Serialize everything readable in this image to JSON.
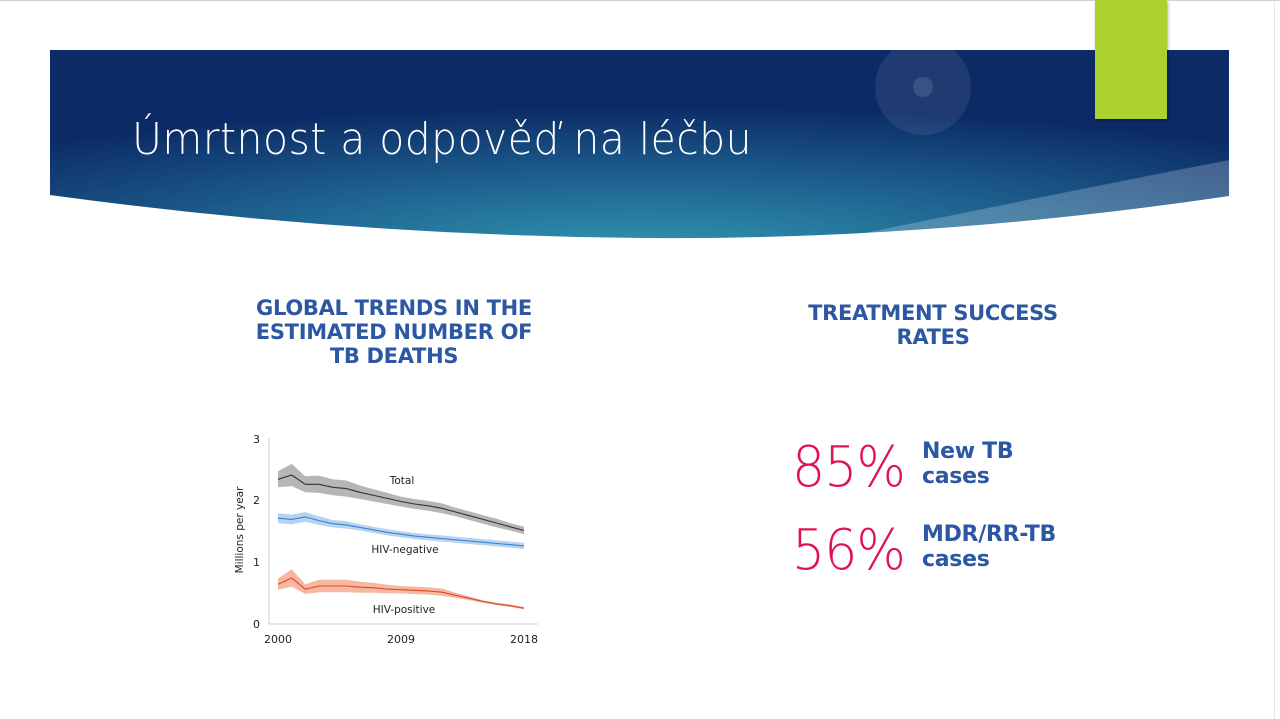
{
  "slide": {
    "title": "Úmrtnost a odpověď na léčbu",
    "colors": {
      "banner_dark": "#0e2f6b",
      "banner_light": "#2e8fad",
      "accent_green": "#aad12f",
      "heading_blue": "#2c58a3",
      "stat_red": "#e0134f"
    }
  },
  "left_panel": {
    "heading_lines": [
      "GLOBAL TRENDS IN THE",
      "ESTIMATED NUMBER OF",
      "TB DEATHS"
    ]
  },
  "right_panel": {
    "heading_lines": [
      "TREATMENT SUCCESS",
      "RATES"
    ],
    "stats": [
      {
        "value": "85%",
        "label_lines": [
          "New TB",
          "cases"
        ]
      },
      {
        "value": "56%",
        "label_lines": [
          "MDR/RR-TB",
          "cases"
        ]
      }
    ]
  },
  "chart_data": {
    "type": "line",
    "title": "",
    "xlabel": "",
    "ylabel": "Millions per year",
    "xlim": [
      2000,
      2018
    ],
    "ylim": [
      0,
      3
    ],
    "x_ticks": [
      "2000",
      "2009",
      "2018"
    ],
    "y_ticks": [
      "0",
      "1",
      "2",
      "3"
    ],
    "grid": false,
    "legend": "inline labels",
    "x": [
      2000,
      2001,
      2002,
      2003,
      2004,
      2005,
      2006,
      2007,
      2008,
      2009,
      2010,
      2011,
      2012,
      2013,
      2014,
      2015,
      2016,
      2017,
      2018
    ],
    "series": [
      {
        "name": "Total",
        "color": "#333333",
        "band_color": "#a9a9a9",
        "values": [
          2.33,
          2.4,
          2.25,
          2.25,
          2.2,
          2.18,
          2.12,
          2.07,
          2.02,
          1.97,
          1.93,
          1.9,
          1.86,
          1.8,
          1.74,
          1.68,
          1.62,
          1.56,
          1.5
        ],
        "band_halfwidth": [
          0.13,
          0.18,
          0.13,
          0.14,
          0.13,
          0.13,
          0.11,
          0.1,
          0.09,
          0.08,
          0.08,
          0.08,
          0.08,
          0.07,
          0.07,
          0.07,
          0.07,
          0.06,
          0.06
        ]
      },
      {
        "name": "HIV-negative",
        "color": "#3b82c9",
        "band_color": "#a9cdef",
        "values": [
          1.7,
          1.68,
          1.72,
          1.66,
          1.61,
          1.59,
          1.55,
          1.51,
          1.47,
          1.44,
          1.41,
          1.39,
          1.37,
          1.35,
          1.33,
          1.31,
          1.29,
          1.27,
          1.25
        ],
        "band_halfwidth": [
          0.08,
          0.08,
          0.08,
          0.07,
          0.06,
          0.06,
          0.05,
          0.05,
          0.05,
          0.05,
          0.05,
          0.05,
          0.05,
          0.05,
          0.05,
          0.05,
          0.05,
          0.05,
          0.05
        ]
      },
      {
        "name": "HIV-positive",
        "color": "#d9492a",
        "band_color": "#f4ab8f",
        "values": [
          0.63,
          0.73,
          0.55,
          0.6,
          0.6,
          0.6,
          0.58,
          0.57,
          0.55,
          0.54,
          0.53,
          0.52,
          0.5,
          0.45,
          0.4,
          0.35,
          0.31,
          0.28,
          0.24
        ],
        "band_halfwidth": [
          0.09,
          0.14,
          0.08,
          0.1,
          0.1,
          0.1,
          0.09,
          0.08,
          0.07,
          0.06,
          0.06,
          0.06,
          0.06,
          0.04,
          0.03,
          0.02,
          0.02,
          0.02,
          0.02
        ]
      }
    ]
  }
}
